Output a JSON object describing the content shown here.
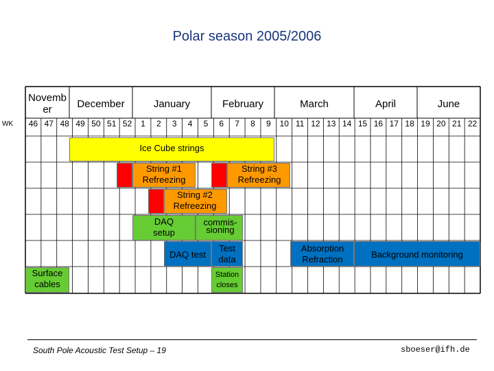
{
  "title": "Polar season 2005/2006",
  "colors": {
    "title": "#17347d",
    "yellow": "#ffff00",
    "red": "#ff0000",
    "orange": "#ff9900",
    "green": "#66cc33",
    "blue": "#0070c0"
  },
  "months": [
    "Novemb\ner",
    "December",
    "January",
    "February",
    "March",
    "April",
    "June"
  ],
  "week_prefix": "WK",
  "weeks": [
    "46",
    "47",
    "48",
    "49",
    "50",
    "51",
    "52",
    "1",
    "2",
    "3",
    "4",
    "5",
    "6",
    "7",
    "8",
    "9",
    "10",
    "11",
    "12",
    "13",
    "14",
    "15",
    "16",
    "17",
    "18",
    "19",
    "20",
    "21",
    "22"
  ],
  "tasks": {
    "ice_cube": "Ice Cube strings",
    "string1": "String #1\nRefreezing",
    "string3": "String #3\nRefreezing",
    "string2": "String #2\nRefreezing",
    "daq_setup": "DAQ\nsetup",
    "commissioning": "commis-\nsioning",
    "daq_test": "DAQ test",
    "test_data": "Test\ndata",
    "absorption": "Absorption\nRefraction",
    "background": "Background monitoring",
    "surface_cables": "Surface\ncables",
    "station_closes": "Station\ncloses"
  },
  "footer": {
    "left": "South Pole Acoustic Test Setup – 19",
    "right": "sboeser@ifh.de"
  }
}
